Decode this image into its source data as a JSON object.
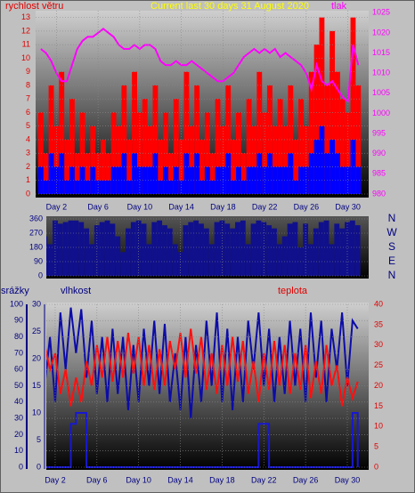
{
  "chart_data": [
    {
      "type": "combo",
      "title": "Current last 30 days 31 August 2020",
      "ylabel": "rychlost větru",
      "y2label": "tlak",
      "x": [
        0.5,
        1,
        1.5,
        2,
        2.5,
        3,
        3.5,
        4,
        4.5,
        5,
        5.5,
        6,
        6.5,
        7,
        7.5,
        8,
        8.5,
        9,
        9.5,
        10,
        10.5,
        11,
        11.5,
        12,
        12.5,
        13,
        13.5,
        14,
        14.5,
        15,
        15.5,
        16,
        16.5,
        17,
        17.5,
        18,
        18.5,
        19,
        19.5,
        20,
        20.5,
        21,
        21.5,
        22,
        22.5,
        23,
        23.5,
        24,
        24.5,
        25,
        25.5,
        26,
        26.5,
        27,
        27.5,
        28,
        28.5,
        29,
        29.5,
        30,
        30.5,
        31
      ],
      "xlim": [
        0,
        32
      ],
      "xticks": [
        {
          "value": 2,
          "label": "Day 2"
        },
        {
          "value": 6,
          "label": "Day 6"
        },
        {
          "value": 10,
          "label": "Day 10"
        },
        {
          "value": 14,
          "label": "Day 14"
        },
        {
          "value": 18,
          "label": "Day 18"
        },
        {
          "value": 22,
          "label": "Day 22"
        },
        {
          "value": 26,
          "label": "Day 26"
        },
        {
          "value": 30,
          "label": "Day 30"
        }
      ],
      "ylim": [
        0,
        13.5
      ],
      "yticks": [
        0,
        1,
        2,
        3,
        4,
        5,
        6,
        7,
        8,
        9,
        10,
        11,
        12,
        13
      ],
      "y2lim": [
        980,
        1025.5
      ],
      "y2ticks": [
        980,
        985,
        990,
        995,
        1000,
        1005,
        1010,
        1015,
        1020,
        1025
      ],
      "grid": true,
      "series": [
        {
          "type": "bar",
          "color": "#ff0000",
          "values": [
            6,
            3,
            8,
            5,
            9,
            4,
            7,
            3,
            6,
            3,
            5,
            3,
            4,
            3,
            6,
            5,
            8,
            4,
            9,
            6,
            7,
            5,
            8,
            4,
            6,
            3,
            7,
            4,
            9,
            5,
            8,
            4,
            6,
            3,
            7,
            5,
            8,
            4,
            6,
            3,
            7,
            5,
            9,
            6,
            8,
            5,
            7,
            5,
            8,
            4,
            7,
            5,
            9,
            11,
            13,
            8,
            12,
            9,
            7,
            6,
            13,
            8
          ]
        },
        {
          "type": "bar",
          "color": "#0000ff",
          "values": [
            2,
            1,
            3,
            2,
            3,
            1,
            2,
            1,
            2,
            1,
            2,
            1,
            1,
            1,
            2,
            2,
            3,
            1,
            3,
            2,
            2,
            2,
            3,
            1,
            2,
            1,
            2,
            1,
            3,
            2,
            3,
            1,
            2,
            1,
            2,
            2,
            3,
            1,
            2,
            1,
            2,
            2,
            3,
            2,
            3,
            2,
            2,
            2,
            3,
            1,
            2,
            2,
            3,
            4,
            5,
            3,
            4,
            3,
            2,
            2,
            4,
            2
          ]
        },
        {
          "type": "line",
          "color": "#ff00ff",
          "axis": "y2",
          "values": [
            1016,
            1015,
            1013,
            1010,
            1008,
            1008,
            1012,
            1016,
            1018,
            1019,
            1019,
            1020,
            1021,
            1020,
            1019,
            1017,
            1016,
            1016,
            1017,
            1016,
            1017,
            1017,
            1016,
            1013,
            1012,
            1012,
            1013,
            1012,
            1012,
            1013,
            1012,
            1011,
            1010,
            1009,
            1008,
            1008,
            1009,
            1010,
            1012,
            1014,
            1015,
            1016,
            1015,
            1016,
            1015,
            1016,
            1014,
            1015,
            1014,
            1013,
            1012,
            1010,
            1006,
            1012,
            1008,
            1007,
            1008,
            1006,
            1004,
            1003,
            1017,
            1012
          ]
        }
      ]
    },
    {
      "type": "combo",
      "x": [
        0.5,
        1,
        1.5,
        2,
        2.5,
        3,
        3.5,
        4,
        4.5,
        5,
        5.5,
        6,
        6.5,
        7,
        7.5,
        8,
        8.5,
        9,
        9.5,
        10,
        10.5,
        11,
        11.5,
        12,
        12.5,
        13,
        13.5,
        14,
        14.5,
        15,
        15.5,
        16,
        16.5,
        17,
        17.5,
        18,
        18.5,
        19,
        19.5,
        20,
        20.5,
        21,
        21.5,
        22,
        22.5,
        23,
        23.5,
        24,
        24.5,
        25,
        25.5,
        26,
        26.5,
        27,
        27.5,
        28,
        28.5,
        29,
        29.5,
        30,
        30.5,
        31
      ],
      "xlim": [
        1.15,
        32.05
      ],
      "xticks": [
        2,
        6,
        10,
        14,
        18,
        22,
        26,
        30
      ],
      "ylim": [
        0,
        360
      ],
      "yticks": [
        0,
        90,
        180,
        270,
        360
      ],
      "direction_labels": [
        "N",
        "W",
        "S",
        "E",
        "N"
      ],
      "grid": true,
      "series": [
        {
          "type": "bar",
          "color": "#10108c",
          "values": [
            300,
            250,
            200,
            350,
            330,
            340,
            350,
            350,
            340,
            300,
            200,
            320,
            340,
            350,
            330,
            250,
            150,
            300,
            340,
            350,
            330,
            200,
            340,
            350,
            320,
            300,
            200,
            150,
            320,
            340,
            350,
            330,
            300,
            200,
            340,
            350,
            330,
            300,
            340,
            350,
            200,
            330,
            350,
            340,
            320,
            300,
            200,
            250,
            330,
            340,
            180,
            330,
            200,
            300,
            340,
            350,
            200,
            330,
            300,
            340,
            350,
            320
          ]
        }
      ]
    },
    {
      "type": "combo",
      "ylabel": "srážky",
      "y3label": "vlhkost",
      "y2label": "teplota",
      "x": [
        0.5,
        1,
        1.5,
        2,
        2.5,
        3,
        3.5,
        4,
        4.5,
        5,
        5.5,
        6,
        6.5,
        7,
        7.5,
        8,
        8.5,
        9,
        9.5,
        10,
        10.5,
        11,
        11.5,
        12,
        12.5,
        13,
        13.5,
        14,
        14.5,
        15,
        15.5,
        16,
        16.5,
        17,
        17.5,
        18,
        18.5,
        19,
        19.5,
        20,
        20.5,
        21,
        21.5,
        22,
        22.5,
        23,
        23.5,
        24,
        24.5,
        25,
        25.5,
        26,
        26.5,
        27,
        27.5,
        28,
        28.5,
        29,
        29.5,
        30,
        30.5,
        31
      ],
      "xlim": [
        1.15,
        32.05
      ],
      "xticks": [
        {
          "value": 2,
          "label": "Day 2"
        },
        {
          "value": 6,
          "label": "Day 6"
        },
        {
          "value": 10,
          "label": "Day 10"
        },
        {
          "value": 14,
          "label": "Day 14"
        },
        {
          "value": 18,
          "label": "Day 18"
        },
        {
          "value": 22,
          "label": "Day 22"
        },
        {
          "value": 26,
          "label": "Day 26"
        },
        {
          "value": 30,
          "label": "Day 30"
        }
      ],
      "ylim": [
        0,
        100
      ],
      "yticks": [
        0,
        10,
        20,
        30,
        40,
        50,
        60,
        70,
        80,
        90,
        100
      ],
      "y3lim": [
        0,
        30
      ],
      "y3ticks": [
        0,
        5,
        10,
        15,
        20,
        25,
        30
      ],
      "y2lim": [
        0,
        40
      ],
      "y2ticks": [
        0,
        5,
        10,
        15,
        20,
        25,
        30,
        35,
        40
      ],
      "grid": true,
      "series": [
        {
          "type": "line",
          "color": "#0c0ca8",
          "values": [
            85,
            50,
            80,
            40,
            95,
            60,
            98,
            70,
            97,
            55,
            90,
            45,
            80,
            40,
            85,
            45,
            80,
            35,
            75,
            40,
            85,
            50,
            90,
            45,
            88,
            40,
            70,
            35,
            80,
            30,
            75,
            40,
            90,
            50,
            95,
            40,
            85,
            35,
            80,
            40,
            90,
            60,
            95,
            50,
            85,
            40,
            80,
            45,
            90,
            50,
            85,
            40,
            95,
            55,
            90,
            40,
            85,
            60,
            95,
            50,
            90,
            85
          ]
        },
        {
          "type": "line",
          "color": "#ff1010",
          "axis": "y2",
          "values": [
            22,
            30,
            24,
            28,
            18,
            24,
            15,
            22,
            16,
            26,
            20,
            30,
            22,
            32,
            21,
            31,
            22,
            33,
            23,
            32,
            20,
            30,
            19,
            29,
            20,
            31,
            24,
            33,
            22,
            34,
            23,
            32,
            19,
            28,
            18,
            30,
            20,
            32,
            21,
            31,
            18,
            26,
            16,
            28,
            19,
            31,
            20,
            30,
            18,
            28,
            19,
            30,
            17,
            26,
            18,
            30,
            20,
            25,
            15,
            22,
            17,
            21
          ]
        },
        {
          "type": "step",
          "color": "#1818d0",
          "axis": "y3",
          "values": [
            0,
            0,
            0,
            0,
            0,
            0,
            8,
            10,
            10,
            0,
            0,
            0,
            0,
            0,
            0,
            0,
            0,
            0,
            0,
            0,
            0,
            0,
            0,
            0,
            0,
            0,
            0,
            0,
            0,
            0,
            0,
            0,
            0,
            0,
            0,
            0,
            0,
            0,
            0,
            0,
            0,
            0,
            8,
            8,
            0,
            0,
            0,
            0,
            0,
            0,
            0,
            0,
            0,
            0,
            0,
            0,
            0,
            0,
            0,
            0,
            10,
            0
          ]
        }
      ]
    }
  ]
}
